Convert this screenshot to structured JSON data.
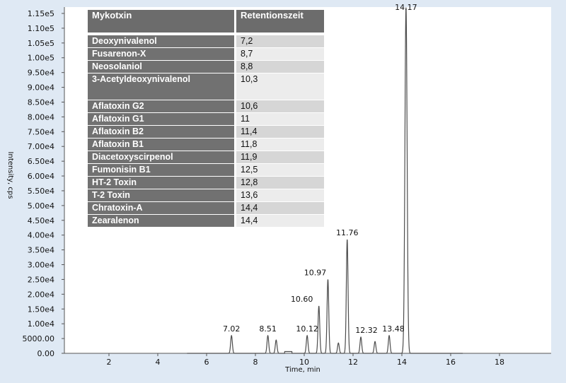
{
  "chart_data": {
    "type": "line",
    "xlabel": "Time, min",
    "ylabel": "Intensity, cps",
    "xlim": [
      0,
      19.8
    ],
    "ylim": [
      0,
      116000
    ],
    "x_ticks": [
      {
        "value": 2,
        "label": "2"
      },
      {
        "value": 4,
        "label": "4"
      },
      {
        "value": 6,
        "label": "6"
      },
      {
        "value": 8,
        "label": "8"
      },
      {
        "value": 10,
        "label": "10"
      },
      {
        "value": 12,
        "label": "12"
      },
      {
        "value": 14,
        "label": "14"
      },
      {
        "value": 16,
        "label": "16"
      },
      {
        "value": 18,
        "label": "18"
      }
    ],
    "y_ticks": [
      {
        "value": 0,
        "label": "0.00"
      },
      {
        "value": 5000,
        "label": "5000.00"
      },
      {
        "value": 10000,
        "label": "1.00e4"
      },
      {
        "value": 15000,
        "label": "1.50e4"
      },
      {
        "value": 20000,
        "label": "2.00e4"
      },
      {
        "value": 25000,
        "label": "2.50e4"
      },
      {
        "value": 30000,
        "label": "3.00e4"
      },
      {
        "value": 35000,
        "label": "3.50e4"
      },
      {
        "value": 40000,
        "label": "4.00e4"
      },
      {
        "value": 45000,
        "label": "4.50e4"
      },
      {
        "value": 50000,
        "label": "5.00e4"
      },
      {
        "value": 55000,
        "label": "5.50e4"
      },
      {
        "value": 60000,
        "label": "6.00e4"
      },
      {
        "value": 65000,
        "label": "6.50e4"
      },
      {
        "value": 70000,
        "label": "7.00e4"
      },
      {
        "value": 75000,
        "label": "7.50e4"
      },
      {
        "value": 80000,
        "label": "8.00e4"
      },
      {
        "value": 85000,
        "label": "8.50e4"
      },
      {
        "value": 90000,
        "label": "9.00e4"
      },
      {
        "value": 95000,
        "label": "9.50e4"
      },
      {
        "value": 100000,
        "label": "1.00e5"
      },
      {
        "value": 105000,
        "label": "1.05e5"
      },
      {
        "value": 110000,
        "label": "1.10e5"
      },
      {
        "value": 115000,
        "label": "1.15e5"
      }
    ],
    "peaks": [
      {
        "rt": 7.02,
        "height": 6000,
        "label": "7.02"
      },
      {
        "rt": 8.51,
        "height": 6000,
        "label": "8.51"
      },
      {
        "rt": 8.85,
        "height": 4500,
        "label": ""
      },
      {
        "rt": 10.12,
        "height": 6000,
        "label": "10.12"
      },
      {
        "rt": 10.6,
        "height": 16000,
        "label": "10.60"
      },
      {
        "rt": 10.97,
        "height": 25000,
        "label": "10.97"
      },
      {
        "rt": 11.4,
        "height": 3500,
        "label": ""
      },
      {
        "rt": 11.76,
        "height": 38500,
        "label": "11.76"
      },
      {
        "rt": 12.32,
        "height": 5500,
        "label": "12.32"
      },
      {
        "rt": 12.9,
        "height": 4000,
        "label": ""
      },
      {
        "rt": 13.48,
        "height": 6000,
        "label": "13.48"
      },
      {
        "rt": 14.17,
        "height": 117000,
        "label": "14.17"
      }
    ],
    "grid": false,
    "colors": {
      "trace": "#4d4d4d",
      "background": "#ffffff",
      "page": "#dfe9f4"
    }
  },
  "table": {
    "header": {
      "col1": "Mykotxin",
      "col2": "Retentionszeit"
    },
    "rows": [
      {
        "name": "Deoxynivalenol",
        "time": "7,2"
      },
      {
        "name": "Fusarenon-X",
        "time": "8,7"
      },
      {
        "name": "Neosolaniol",
        "time": "8,8"
      },
      {
        "name": "3-Acetyldeoxynivalenol",
        "time": "10,3"
      },
      {
        "name": "Aflatoxin G2",
        "time": "10,6"
      },
      {
        "name": "Aflatoxin G1",
        "time": "11"
      },
      {
        "name": "Aflatoxin B2",
        "time": "11,4"
      },
      {
        "name": "Aflatoxin B1",
        "time": "11,8"
      },
      {
        "name": "Diacetoxyscirpenol",
        "time": "11,9"
      },
      {
        "name": "Fumonisin B1",
        "time": "12,5"
      },
      {
        "name": "HT-2 Toxin",
        "time": "12,8"
      },
      {
        "name": "T-2 Toxin",
        "time": "13,6"
      },
      {
        "name": "Chratoxin-A",
        "time": "14,4"
      },
      {
        "name": "Zearalenon",
        "time": "14,4"
      }
    ]
  }
}
